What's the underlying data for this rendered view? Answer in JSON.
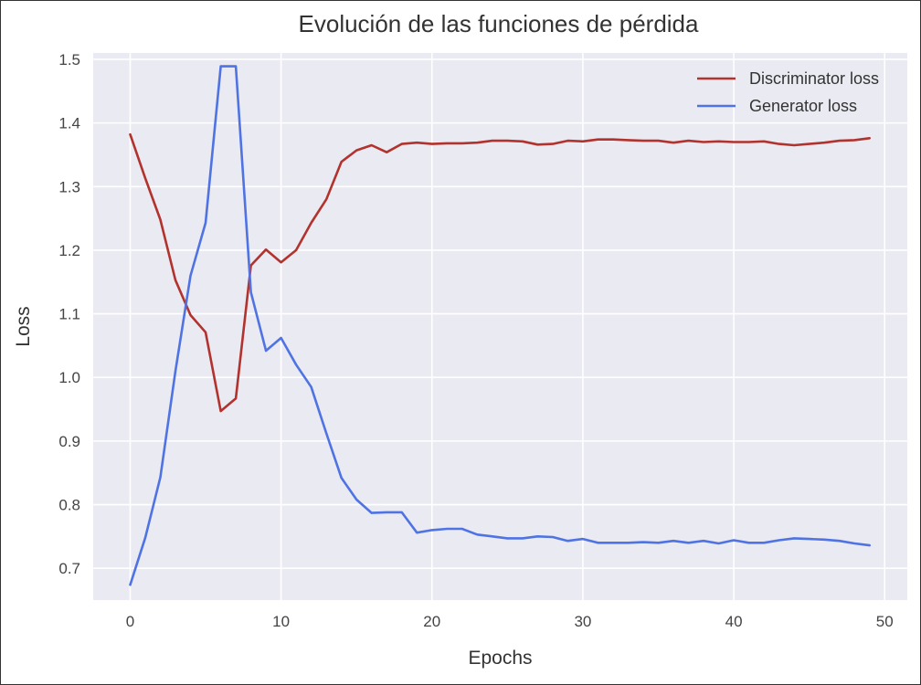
{
  "chart_data": {
    "type": "line",
    "title": "Evolución de las funciones de pérdida",
    "xlabel": "Epochs",
    "ylabel": "Loss",
    "xlim": [
      -2.45,
      51.5
    ],
    "ylim": [
      0.65,
      1.51
    ],
    "xticks": [
      0,
      10,
      20,
      30,
      40,
      50
    ],
    "yticks": [
      0.7,
      0.8,
      0.9,
      1.0,
      1.1,
      1.2,
      1.3,
      1.4,
      1.5
    ],
    "grid": true,
    "legend_position": "top-right",
    "series": [
      {
        "name": "Discriminator loss",
        "color": "#b2332e",
        "x": [
          0,
          1,
          2,
          3,
          4,
          5,
          6,
          7,
          8,
          9,
          10,
          11,
          12,
          13,
          14,
          15,
          16,
          17,
          18,
          19,
          20,
          21,
          22,
          23,
          24,
          25,
          26,
          27,
          28,
          29,
          30,
          31,
          32,
          33,
          34,
          35,
          36,
          37,
          38,
          39,
          40,
          41,
          42,
          43,
          44,
          45,
          46,
          47,
          48,
          49
        ],
        "y": [
          1.382,
          1.313,
          1.248,
          1.153,
          1.098,
          1.071,
          0.947,
          0.967,
          1.176,
          1.201,
          1.181,
          1.2,
          1.243,
          1.28,
          1.339,
          1.357,
          1.365,
          1.354,
          1.367,
          1.369,
          1.367,
          1.368,
          1.368,
          1.369,
          1.372,
          1.372,
          1.371,
          1.366,
          1.367,
          1.372,
          1.371,
          1.374,
          1.374,
          1.373,
          1.372,
          1.372,
          1.369,
          1.372,
          1.37,
          1.371,
          1.37,
          1.37,
          1.371,
          1.367,
          1.365,
          1.367,
          1.369,
          1.372,
          1.373,
          1.376
        ]
      },
      {
        "name": "Generator loss",
        "color": "#4f73e3",
        "x": [
          0,
          1,
          2,
          3,
          4,
          5,
          6,
          7,
          8,
          9,
          10,
          11,
          12,
          13,
          14,
          15,
          16,
          17,
          18,
          19,
          20,
          21,
          22,
          23,
          24,
          25,
          26,
          27,
          28,
          29,
          30,
          31,
          32,
          33,
          34,
          35,
          36,
          37,
          38,
          39,
          40,
          41,
          42,
          43,
          44,
          45,
          46,
          47,
          48,
          49
        ],
        "y": [
          0.674,
          0.748,
          0.843,
          1.01,
          1.16,
          1.243,
          1.489,
          1.489,
          1.134,
          1.042,
          1.062,
          1.02,
          0.985,
          0.912,
          0.842,
          0.808,
          0.787,
          0.788,
          0.788,
          0.756,
          0.76,
          0.762,
          0.762,
          0.753,
          0.75,
          0.747,
          0.747,
          0.75,
          0.749,
          0.743,
          0.746,
          0.74,
          0.74,
          0.74,
          0.741,
          0.74,
          0.743,
          0.74,
          0.743,
          0.739,
          0.744,
          0.74,
          0.74,
          0.744,
          0.747,
          0.746,
          0.745,
          0.743,
          0.739,
          0.736
        ]
      }
    ]
  }
}
